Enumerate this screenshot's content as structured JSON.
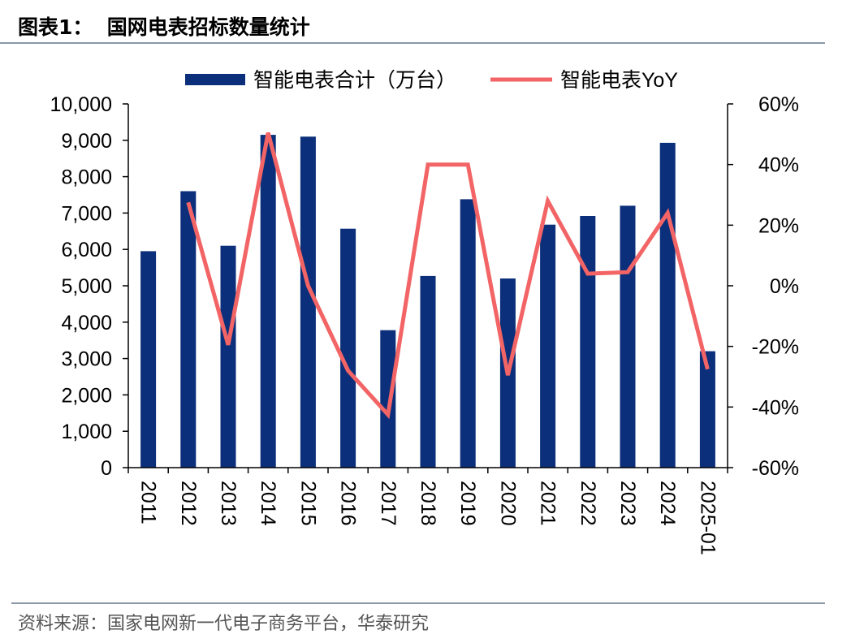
{
  "header": {
    "title": "图表1：  国网电表招标数量统计"
  },
  "footer": {
    "source": "资料来源：国家电网新一代电子商务平台，华泰研究"
  },
  "colors": {
    "bar": "#0b2f7a",
    "line": "#f26465",
    "axis": "#000000",
    "rule": "#8a98aa"
  },
  "chart_data": {
    "type": "bar",
    "title": "",
    "xlabel": "",
    "categories": [
      "2011",
      "2012",
      "2013",
      "2014",
      "2015",
      "2016",
      "2017",
      "2018",
      "2019",
      "2020",
      "2021",
      "2022",
      "2023",
      "2024",
      "2025-01"
    ],
    "series": [
      {
        "name": "智能电表合计（万台）",
        "type": "bar",
        "axis": "left",
        "values": [
          5950,
          7600,
          6100,
          9150,
          9100,
          6570,
          3780,
          5270,
          7380,
          5200,
          6680,
          6920,
          7200,
          8930,
          3200
        ]
      },
      {
        "name": "智能电表YoY",
        "type": "line",
        "axis": "right",
        "unit": "%",
        "values": [
          null,
          27.5,
          -19.5,
          50.5,
          0,
          -28,
          -42.5,
          40,
          40,
          -29.5,
          28,
          4,
          4.5,
          24,
          -27.5
        ]
      }
    ],
    "left_axis": {
      "ylim": [
        0,
        10000
      ],
      "ticks": [
        "0",
        "1,000",
        "2,000",
        "3,000",
        "4,000",
        "5,000",
        "6,000",
        "7,000",
        "8,000",
        "9,000",
        "10,000"
      ]
    },
    "right_axis": {
      "ylim": [
        -60,
        60
      ],
      "ticks": [
        "-60%",
        "-40%",
        "-20%",
        "0%",
        "20%",
        "40%",
        "60%"
      ]
    },
    "legend": {
      "position": "top-center"
    },
    "grid": false
  }
}
